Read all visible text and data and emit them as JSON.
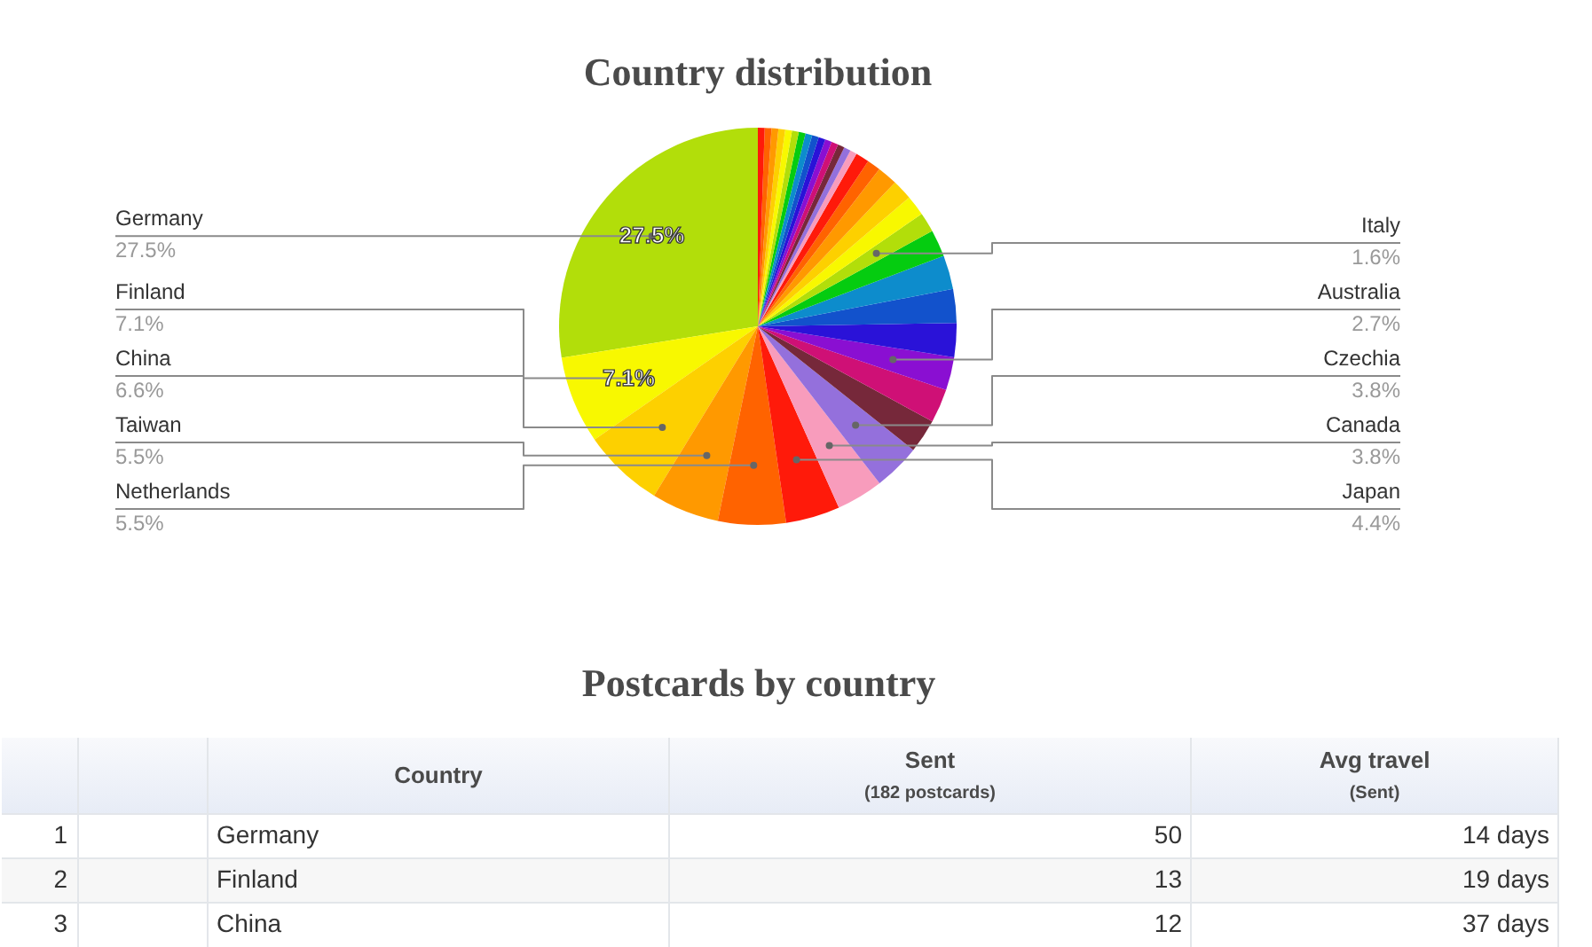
{
  "chart_data": [
    {
      "type": "pie",
      "title": "Country distribution",
      "categories": [
        "Germany",
        "Finland",
        "China",
        "Taiwan",
        "Netherlands",
        "Japan",
        "Canada",
        "Czechia",
        null,
        null,
        "Australia",
        null,
        null,
        null,
        null,
        "Italy",
        null,
        null,
        null,
        null,
        null,
        null,
        null,
        null,
        null,
        null,
        null,
        null,
        null,
        null,
        null,
        null,
        null,
        null,
        null,
        null
      ],
      "values": [
        27.5,
        7.1,
        6.6,
        5.5,
        5.5,
        4.4,
        3.8,
        3.8,
        2.75,
        2.75,
        2.7,
        2.75,
        2.75,
        2.75,
        2.2,
        1.6,
        1.65,
        1.65,
        1.65,
        1.1,
        1.1,
        0.55,
        0.55,
        0.55,
        0.55,
        0.55,
        0.55,
        0.55,
        0.55,
        0.55,
        0.55,
        0.55,
        0.55,
        0.55,
        0.55,
        0.55
      ],
      "value_labels": [
        "27.5%",
        "7.1%",
        "6.6%",
        "5.5%",
        "5.5%",
        "4.4%",
        "3.8%",
        "3.8%",
        null,
        null,
        "2.7%",
        null,
        null,
        null,
        null,
        "1.6%",
        null,
        null,
        null,
        null,
        null,
        null,
        null,
        null,
        null,
        null,
        null,
        null,
        null,
        null,
        null,
        null,
        null,
        null,
        null,
        null
      ],
      "colors": [
        "#b2de0a",
        "#f8f800",
        "#fdd000",
        "#ff9900",
        "#ff6300",
        "#ff1a0a",
        "#f89cbc",
        "#9470dc",
        "#76283a",
        "#cf1076",
        "#8a0fd2",
        "#2a12d8",
        "#1252cc",
        "#0d8ccc",
        "#05cc10",
        "#b2de0a",
        "#f8f800",
        "#fdd000",
        "#ff9900",
        "#ff6300",
        "#ff1a0a",
        "#f89cbc",
        "#9470dc",
        "#76283a",
        "#cf1076",
        "#8a0fd2",
        "#2a12d8",
        "#1252cc",
        "#0d8ccc",
        "#05cc10",
        "#b2de0a",
        "#f8f800",
        "#fdd000",
        "#ff9900",
        "#ff6300",
        "#ff1a0a"
      ],
      "annotations": [
        {
          "text": "27.5%",
          "x": "Germany"
        },
        {
          "text": "7.1%",
          "x": "Finland"
        }
      ]
    },
    {
      "type": "other",
      "title": "Postcards by country",
      "categories": [
        "Country",
        "Sent",
        "Avg travel"
      ],
      "y_categories": [
        "1",
        "2",
        "3"
      ],
      "cell_labels": [
        [
          "Germany",
          "50",
          "14 days"
        ],
        [
          "Finland",
          "13",
          "19 days"
        ],
        [
          "China",
          "12",
          "37 days"
        ]
      ],
      "colors": [
        "#333333",
        "#3a6fb0",
        "#333333"
      ],
      "annotations": [
        {
          "text": "(182 postcards)",
          "x": "Sent"
        },
        {
          "text": "(Sent)",
          "x": "Avg travel"
        }
      ]
    }
  ]
}
